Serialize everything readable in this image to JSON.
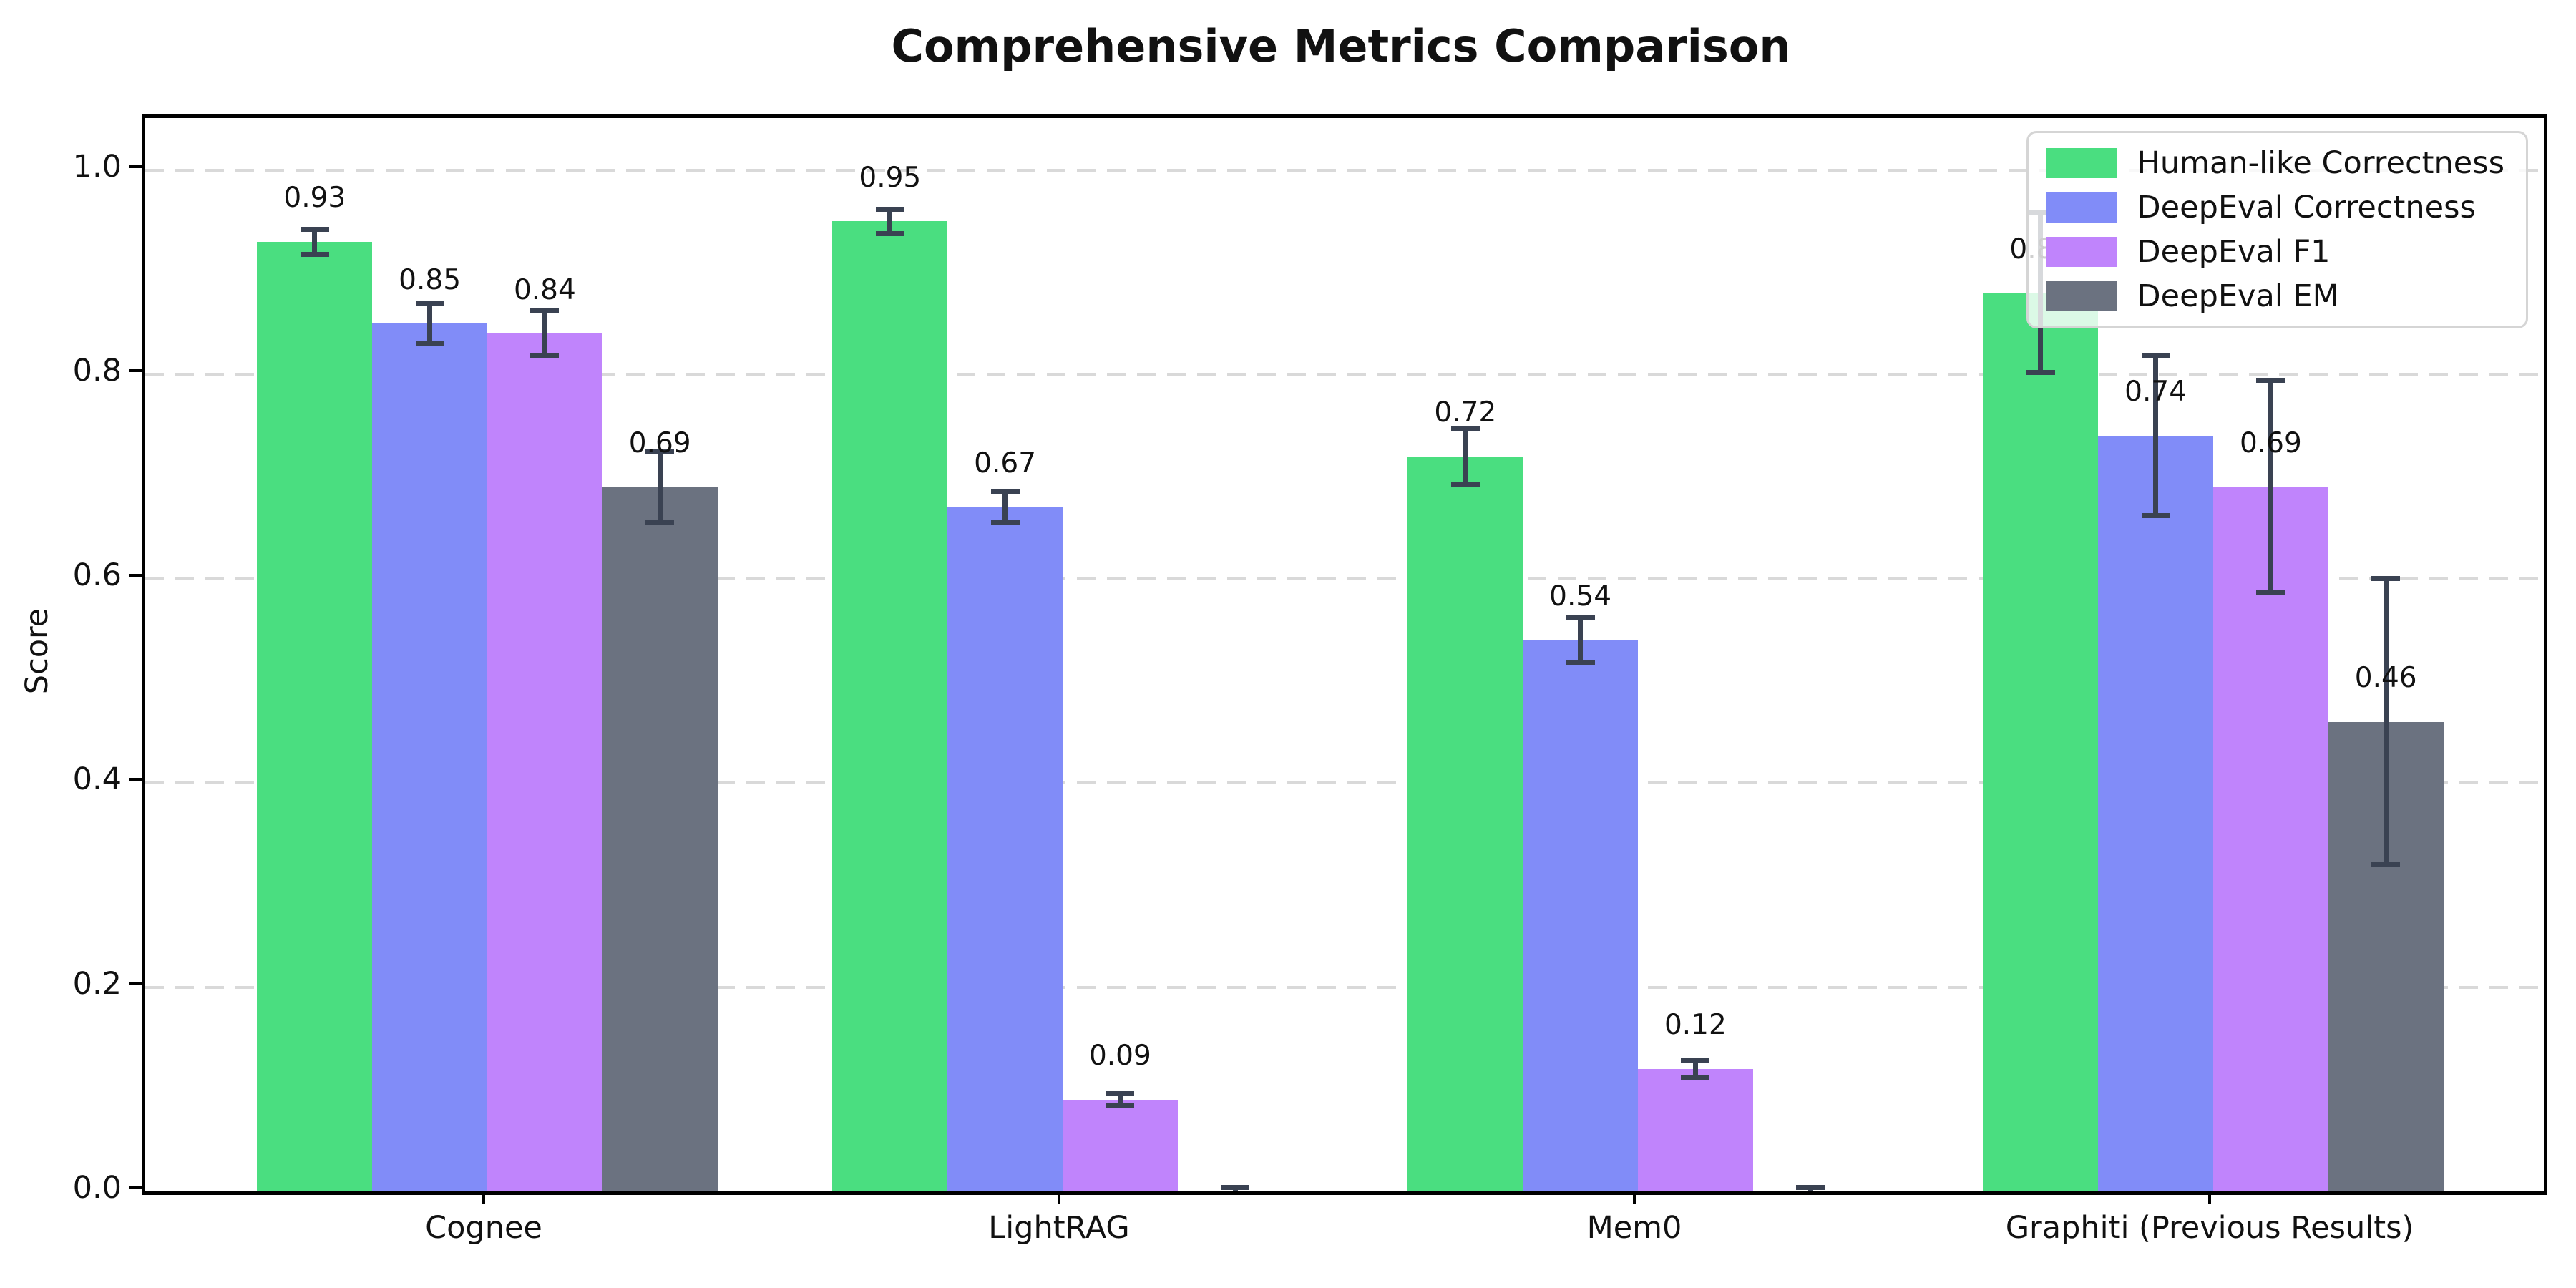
{
  "chart_data": {
    "type": "bar",
    "title": "Comprehensive Metrics Comparison",
    "xlabel": "",
    "ylabel": "Score",
    "categories": [
      "Cognee",
      "LightRAG",
      "Mem0",
      "Graphiti (Previous Results)"
    ],
    "series": [
      {
        "name": "Human-like Correctness",
        "color": "#4ade80",
        "values": [
          0.93,
          0.95,
          0.72,
          0.88
        ],
        "errors": [
          0.012,
          0.012,
          0.027,
          0.078
        ],
        "labels": [
          "0.93",
          "0.95",
          "0.72",
          "0.88"
        ]
      },
      {
        "name": "DeepEval Correctness",
        "color": "#818cf8",
        "values": [
          0.85,
          0.67,
          0.54,
          0.74
        ],
        "errors": [
          0.02,
          0.015,
          0.022,
          0.078
        ],
        "labels": [
          "0.85",
          "0.67",
          "0.54",
          "0.74"
        ]
      },
      {
        "name": "DeepEval F1",
        "color": "#c084fc",
        "values": [
          0.84,
          0.09,
          0.12,
          0.69
        ],
        "errors": [
          0.022,
          0.006,
          0.008,
          0.104
        ],
        "labels": [
          "0.84",
          "0.09",
          "0.12",
          "0.69"
        ]
      },
      {
        "name": "DeepEval EM",
        "color": "#6b7280",
        "values": [
          0.69,
          0.0,
          0.0,
          0.46
        ],
        "errors": [
          0.035,
          0.004,
          0.004,
          0.14
        ],
        "labels": [
          "0.69",
          null,
          null,
          "0.46"
        ]
      }
    ],
    "ytick_labels": [
      "0.0",
      "0.2",
      "0.4",
      "0.6",
      "0.8",
      "1.0"
    ],
    "ytick_values": [
      0.0,
      0.2,
      0.4,
      0.6,
      0.8,
      1.0
    ],
    "ylim": [
      0.0,
      1.051
    ],
    "grid": "horizontal-dashed",
    "legend_position": "upper right",
    "error_bar_color": "#3a4252"
  }
}
